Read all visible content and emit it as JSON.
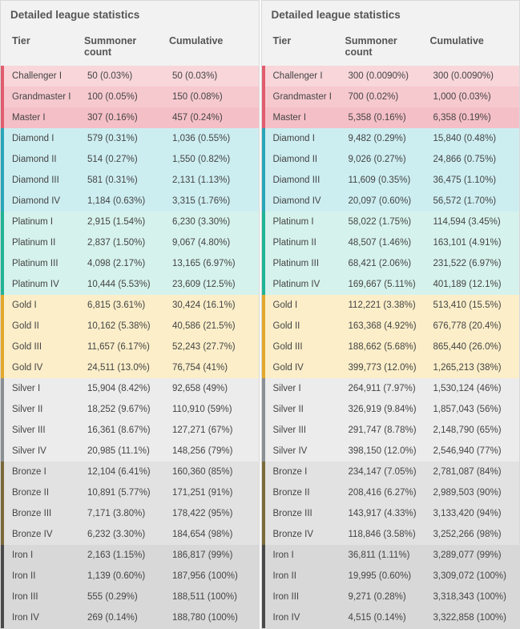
{
  "title": "Detailed league statistics",
  "columns": [
    "Tier",
    "Summoner count",
    "Cumulative"
  ],
  "tier_styles": {
    "challenger": {
      "border": "#e05c6e",
      "bg": "#f8d6da"
    },
    "grandmaster": {
      "border": "#e05c6e",
      "bg": "#f6c9cf"
    },
    "master": {
      "border": "#e05c6e",
      "bg": "#f5bfc7"
    },
    "diamond": {
      "border": "#2aa6b8",
      "bg": "#cdeef1"
    },
    "platinum": {
      "border": "#1fb495",
      "bg": "#d6f2ec"
    },
    "gold": {
      "border": "#e3a82b",
      "bg": "#fbeec9"
    },
    "silver": {
      "border": "#8a8f94",
      "bg": "#ececec"
    },
    "bronze": {
      "border": "#7a6a3a",
      "bg": "#e2e2e2"
    },
    "iron": {
      "border": "#4a4a4a",
      "bg": "#d8d8d8"
    }
  },
  "panels": [
    {
      "rows": [
        {
          "tier": "Challenger I",
          "count": "50 (0.03%)",
          "cum": "50 (0.03%)",
          "g": "challenger"
        },
        {
          "tier": "Grandmaster I",
          "count": "100 (0.05%)",
          "cum": "150 (0.08%)",
          "g": "grandmaster"
        },
        {
          "tier": "Master I",
          "count": "307 (0.16%)",
          "cum": "457 (0.24%)",
          "g": "master"
        },
        {
          "tier": "Diamond I",
          "count": "579 (0.31%)",
          "cum": "1,036 (0.55%)",
          "g": "diamond"
        },
        {
          "tier": "Diamond II",
          "count": "514 (0.27%)",
          "cum": "1,550 (0.82%)",
          "g": "diamond"
        },
        {
          "tier": "Diamond III",
          "count": "581 (0.31%)",
          "cum": "2,131 (1.13%)",
          "g": "diamond"
        },
        {
          "tier": "Diamond IV",
          "count": "1,184 (0.63%)",
          "cum": "3,315 (1.76%)",
          "g": "diamond"
        },
        {
          "tier": "Platinum I",
          "count": "2,915 (1.54%)",
          "cum": "6,230 (3.30%)",
          "g": "platinum"
        },
        {
          "tier": "Platinum II",
          "count": "2,837 (1.50%)",
          "cum": "9,067 (4.80%)",
          "g": "platinum"
        },
        {
          "tier": "Platinum III",
          "count": "4,098 (2.17%)",
          "cum": "13,165 (6.97%)",
          "g": "platinum"
        },
        {
          "tier": "Platinum IV",
          "count": "10,444 (5.53%)",
          "cum": "23,609 (12.5%)",
          "g": "platinum"
        },
        {
          "tier": "Gold I",
          "count": "6,815 (3.61%)",
          "cum": "30,424 (16.1%)",
          "g": "gold"
        },
        {
          "tier": "Gold II",
          "count": "10,162 (5.38%)",
          "cum": "40,586 (21.5%)",
          "g": "gold"
        },
        {
          "tier": "Gold III",
          "count": "11,657 (6.17%)",
          "cum": "52,243 (27.7%)",
          "g": "gold"
        },
        {
          "tier": "Gold IV",
          "count": "24,511 (13.0%)",
          "cum": "76,754 (41%)",
          "g": "gold"
        },
        {
          "tier": "Silver I",
          "count": "15,904 (8.42%)",
          "cum": "92,658 (49%)",
          "g": "silver"
        },
        {
          "tier": "Silver II",
          "count": "18,252 (9.67%)",
          "cum": "110,910 (59%)",
          "g": "silver"
        },
        {
          "tier": "Silver III",
          "count": "16,361 (8.67%)",
          "cum": "127,271 (67%)",
          "g": "silver"
        },
        {
          "tier": "Silver IV",
          "count": "20,985 (11.1%)",
          "cum": "148,256 (79%)",
          "g": "silver"
        },
        {
          "tier": "Bronze I",
          "count": "12,104 (6.41%)",
          "cum": "160,360 (85%)",
          "g": "bronze"
        },
        {
          "tier": "Bronze II",
          "count": "10,891 (5.77%)",
          "cum": "171,251 (91%)",
          "g": "bronze"
        },
        {
          "tier": "Bronze III",
          "count": "7,171 (3.80%)",
          "cum": "178,422 (95%)",
          "g": "bronze"
        },
        {
          "tier": "Bronze IV",
          "count": "6,232 (3.30%)",
          "cum": "184,654 (98%)",
          "g": "bronze"
        },
        {
          "tier": "Iron I",
          "count": "2,163 (1.15%)",
          "cum": "186,817 (99%)",
          "g": "iron"
        },
        {
          "tier": "Iron II",
          "count": "1,139 (0.60%)",
          "cum": "187,956 (100%)",
          "g": "iron"
        },
        {
          "tier": "Iron III",
          "count": "555 (0.29%)",
          "cum": "188,511 (100%)",
          "g": "iron"
        },
        {
          "tier": "Iron IV",
          "count": "269 (0.14%)",
          "cum": "188,780 (100%)",
          "g": "iron"
        }
      ]
    },
    {
      "rows": [
        {
          "tier": "Challenger I",
          "count": "300 (0.0090%)",
          "cum": "300 (0.0090%)",
          "g": "challenger"
        },
        {
          "tier": "Grandmaster I",
          "count": "700 (0.02%)",
          "cum": "1,000 (0.03%)",
          "g": "grandmaster"
        },
        {
          "tier": "Master I",
          "count": "5,358 (0.16%)",
          "cum": "6,358 (0.19%)",
          "g": "master"
        },
        {
          "tier": "Diamond I",
          "count": "9,482 (0.29%)",
          "cum": "15,840 (0.48%)",
          "g": "diamond"
        },
        {
          "tier": "Diamond II",
          "count": "9,026 (0.27%)",
          "cum": "24,866 (0.75%)",
          "g": "diamond"
        },
        {
          "tier": "Diamond III",
          "count": "11,609 (0.35%)",
          "cum": "36,475 (1.10%)",
          "g": "diamond"
        },
        {
          "tier": "Diamond IV",
          "count": "20,097 (0.60%)",
          "cum": "56,572 (1.70%)",
          "g": "diamond"
        },
        {
          "tier": "Platinum I",
          "count": "58,022 (1.75%)",
          "cum": "114,594 (3.45%)",
          "g": "platinum"
        },
        {
          "tier": "Platinum II",
          "count": "48,507 (1.46%)",
          "cum": "163,101 (4.91%)",
          "g": "platinum"
        },
        {
          "tier": "Platinum III",
          "count": "68,421 (2.06%)",
          "cum": "231,522 (6.97%)",
          "g": "platinum"
        },
        {
          "tier": "Platinum IV",
          "count": "169,667 (5.11%)",
          "cum": "401,189 (12.1%)",
          "g": "platinum"
        },
        {
          "tier": "Gold I",
          "count": "112,221 (3.38%)",
          "cum": "513,410 (15.5%)",
          "g": "gold"
        },
        {
          "tier": "Gold II",
          "count": "163,368 (4.92%)",
          "cum": "676,778 (20.4%)",
          "g": "gold"
        },
        {
          "tier": "Gold III",
          "count": "188,662 (5.68%)",
          "cum": "865,440 (26.0%)",
          "g": "gold"
        },
        {
          "tier": "Gold IV",
          "count": "399,773 (12.0%)",
          "cum": "1,265,213 (38%)",
          "g": "gold"
        },
        {
          "tier": "Silver I",
          "count": "264,911 (7.97%)",
          "cum": "1,530,124 (46%)",
          "g": "silver"
        },
        {
          "tier": "Silver II",
          "count": "326,919 (9.84%)",
          "cum": "1,857,043 (56%)",
          "g": "silver"
        },
        {
          "tier": "Silver III",
          "count": "291,747 (8.78%)",
          "cum": "2,148,790 (65%)",
          "g": "silver"
        },
        {
          "tier": "Silver IV",
          "count": "398,150 (12.0%)",
          "cum": "2,546,940 (77%)",
          "g": "silver"
        },
        {
          "tier": "Bronze I",
          "count": "234,147 (7.05%)",
          "cum": "2,781,087 (84%)",
          "g": "bronze"
        },
        {
          "tier": "Bronze II",
          "count": "208,416 (6.27%)",
          "cum": "2,989,503 (90%)",
          "g": "bronze"
        },
        {
          "tier": "Bronze III",
          "count": "143,917 (4.33%)",
          "cum": "3,133,420 (94%)",
          "g": "bronze"
        },
        {
          "tier": "Bronze IV",
          "count": "118,846 (3.58%)",
          "cum": "3,252,266 (98%)",
          "g": "bronze"
        },
        {
          "tier": "Iron I",
          "count": "36,811 (1.11%)",
          "cum": "3,289,077 (99%)",
          "g": "iron"
        },
        {
          "tier": "Iron II",
          "count": "19,995 (0.60%)",
          "cum": "3,309,072 (100%)",
          "g": "iron"
        },
        {
          "tier": "Iron III",
          "count": "9,271 (0.28%)",
          "cum": "3,318,343 (100%)",
          "g": "iron"
        },
        {
          "tier": "Iron IV",
          "count": "4,515 (0.14%)",
          "cum": "3,322,858 (100%)",
          "g": "iron"
        }
      ]
    }
  ]
}
